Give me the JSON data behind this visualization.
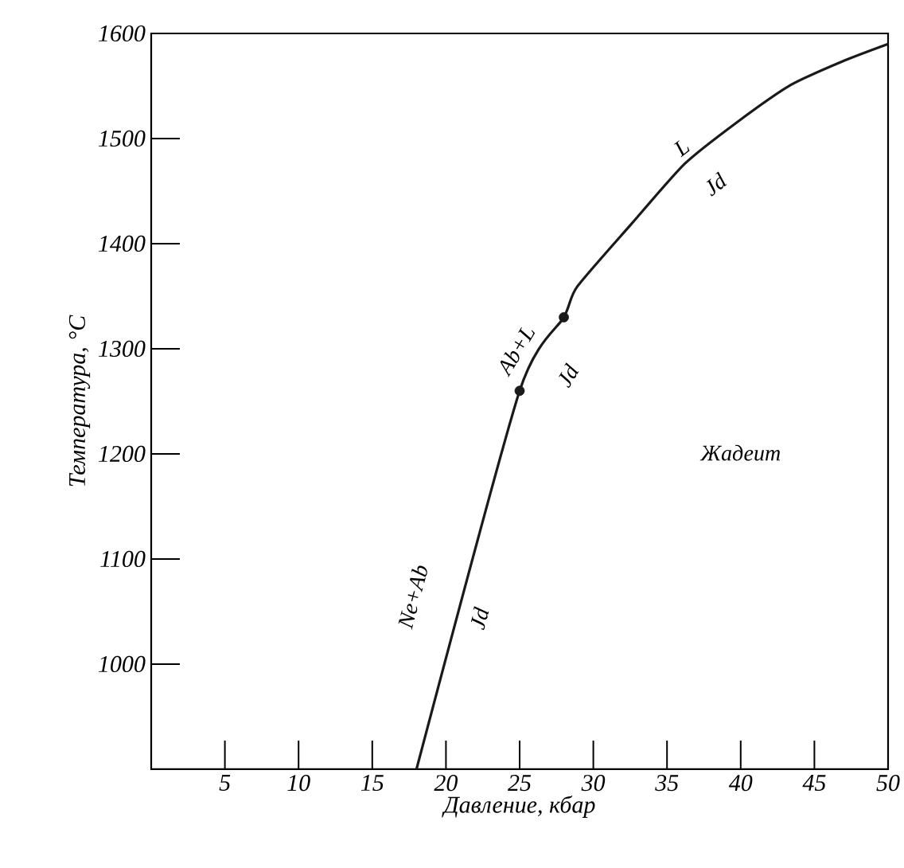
{
  "chart_data": {
    "type": "line",
    "xlabel": "Давление, кбар",
    "ylabel": "Температура, °C",
    "xlim": [
      0,
      50
    ],
    "ylim": [
      900,
      1600
    ],
    "xticks": [
      5,
      10,
      15,
      20,
      25,
      30,
      35,
      40,
      45,
      50
    ],
    "yticks": [
      1000,
      1100,
      1200,
      1300,
      1400,
      1500,
      1600
    ],
    "grid": false,
    "series": [
      {
        "color": "#1a1a1a",
        "marker": "none",
        "x": [
          18,
          25,
          28,
          28.9,
          32.6,
          36.2,
          39.7,
          43.4,
          47,
          50
        ],
        "values": [
          900,
          1260,
          1330,
          1359,
          1419,
          1476,
          1515,
          1551,
          1574,
          1590
        ]
      },
      {
        "type": "scatter",
        "color": "#1a1a1a",
        "marker": "circle",
        "x": [
          25,
          28
        ],
        "values": [
          1260,
          1330
        ]
      }
    ],
    "annotations": [
      "Ne+Ab",
      "Jd",
      "Ab+L",
      "Jd",
      "L",
      "Jd",
      "Жадеит"
    ]
  }
}
